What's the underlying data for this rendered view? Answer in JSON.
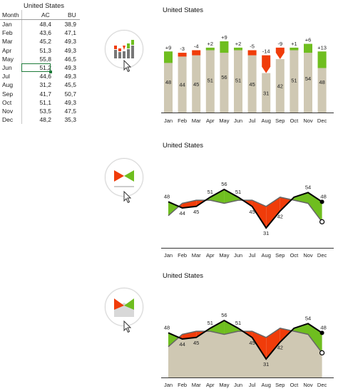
{
  "table": {
    "title": "United States",
    "col_month": "Month",
    "col_ac": "AC",
    "col_bu": "BU",
    "rows": [
      {
        "month": "Jan",
        "ac": "48,4",
        "bu": "38,9"
      },
      {
        "month": "Feb",
        "ac": "43,6",
        "bu": "47,1"
      },
      {
        "month": "Mar",
        "ac": "45,2",
        "bu": "49,3"
      },
      {
        "month": "Apr",
        "ac": "51,3",
        "bu": "49,3"
      },
      {
        "month": "May",
        "ac": "55,8",
        "bu": "46,5"
      },
      {
        "month": "Jun",
        "ac": "51,2",
        "bu": "49,3"
      },
      {
        "month": "Jul",
        "ac": "44,6",
        "bu": "49,3"
      },
      {
        "month": "Aug",
        "ac": "31,2",
        "bu": "45,5"
      },
      {
        "month": "Sep",
        "ac": "41,7",
        "bu": "50,7"
      },
      {
        "month": "Oct",
        "ac": "51,1",
        "bu": "49,3"
      },
      {
        "month": "Nov",
        "ac": "53,5",
        "bu": "47,5"
      },
      {
        "month": "Dec",
        "ac": "48,2",
        "bu": "35,3"
      }
    ],
    "selected_row": 5
  },
  "colors": {
    "bar": "#cfc8b3",
    "positive": "#6fbe1f",
    "negative": "#f03c0a",
    "ac_line": "#000000",
    "bu_line": "#666666",
    "axis": "#333333",
    "selection": "#1e7b3a"
  },
  "icons": [
    "variance-bar-chart-icon",
    "variance-line-chart-icon",
    "variance-area-chart-icon"
  ],
  "chart_data": [
    {
      "type": "bar",
      "title": "United States",
      "categories": [
        "Jan",
        "Feb",
        "Mar",
        "Apr",
        "May",
        "Jun",
        "Jul",
        "Aug",
        "Sep",
        "Oct",
        "Nov",
        "Dec"
      ],
      "series": [
        {
          "name": "AC",
          "values": [
            48,
            44,
            45,
            51,
            56,
            51,
            45,
            31,
            42,
            51,
            54,
            48
          ]
        },
        {
          "name": "BU",
          "values": [
            39,
            47,
            49,
            49,
            47,
            49,
            49,
            45,
            51,
            49,
            47,
            35
          ]
        }
      ],
      "value_labels": [
        "48",
        "44",
        "45",
        "51",
        "56",
        "51",
        "45",
        "31",
        "42",
        "51",
        "54",
        "48"
      ],
      "variance_labels": [
        "+9",
        "-3",
        "-4",
        "+2",
        "+9",
        "+2",
        "-5",
        "-14",
        "-9",
        "+1",
        "+6",
        "+13"
      ],
      "ylim": [
        0,
        62
      ]
    },
    {
      "type": "line",
      "title": "United States",
      "categories": [
        "Jan",
        "Feb",
        "Mar",
        "Apr",
        "May",
        "Jun",
        "Jul",
        "Aug",
        "Sep",
        "Oct",
        "Nov",
        "Dec"
      ],
      "series": [
        {
          "name": "AC",
          "values": [
            48,
            44,
            45,
            51,
            56,
            51,
            45,
            31,
            42,
            51,
            54,
            48
          ]
        },
        {
          "name": "BU",
          "values": [
            39,
            47,
            49,
            49,
            47,
            49,
            49,
            45,
            51,
            49,
            47,
            35
          ]
        }
      ],
      "point_labels": [
        "48",
        "44",
        "45",
        "51",
        "56",
        "51",
        "45",
        "31",
        "42",
        "",
        "54",
        "48"
      ],
      "ylim": [
        0,
        62
      ]
    },
    {
      "type": "area",
      "title": "United States",
      "categories": [
        "Jan",
        "Feb",
        "Mar",
        "Apr",
        "May",
        "Jun",
        "Jul",
        "Aug",
        "Sep",
        "Oct",
        "Nov",
        "Dec"
      ],
      "series": [
        {
          "name": "AC",
          "values": [
            48,
            44,
            45,
            51,
            56,
            51,
            45,
            31,
            42,
            51,
            54,
            48
          ]
        },
        {
          "name": "BU",
          "values": [
            39,
            47,
            49,
            49,
            47,
            49,
            49,
            45,
            51,
            49,
            47,
            35
          ]
        }
      ],
      "point_labels": [
        "48",
        "44",
        "45",
        "51",
        "56",
        "51",
        "45",
        "31",
        "42",
        "",
        "54",
        "48"
      ],
      "ylim": [
        0,
        62
      ]
    }
  ]
}
